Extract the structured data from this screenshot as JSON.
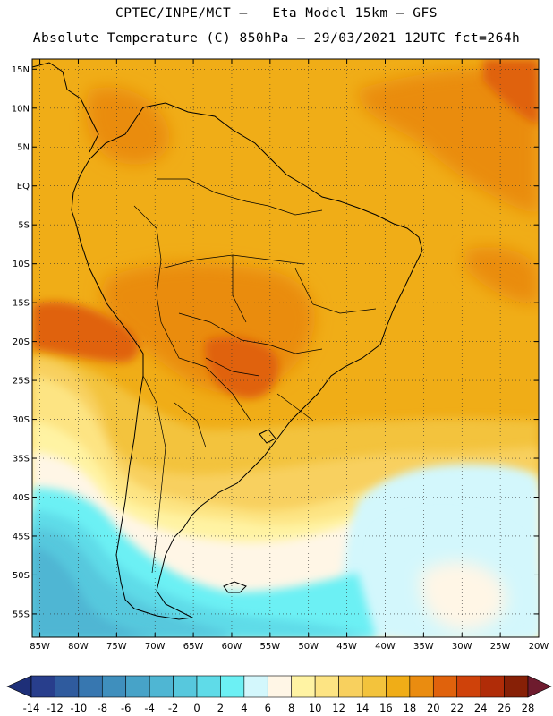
{
  "header": {
    "title_line1": "CPTEC/INPE/MCT –   Eta Model 15km – GFS",
    "title_line2": "Absolute Temperature (C) 850hPa – 29/03/2021 12UTC fct=264h"
  },
  "map": {
    "region": "South America",
    "lat_labels": [
      "15N",
      "10N",
      "5N",
      "EQ",
      "5S",
      "10S",
      "15S",
      "20S",
      "25S",
      "30S",
      "35S",
      "40S",
      "45S",
      "50S",
      "55S"
    ],
    "lon_labels": [
      "85W",
      "80W",
      "75W",
      "70W",
      "65W",
      "60W",
      "55W",
      "50W",
      "45W",
      "40W",
      "35W",
      "30W",
      "25W",
      "20W"
    ],
    "lat_values": [
      15,
      10,
      5,
      0,
      -5,
      -10,
      -15,
      -20,
      -25,
      -30,
      -35,
      -40,
      -45,
      -50,
      -55
    ],
    "lon_values": [
      -85,
      -80,
      -75,
      -70,
      -65,
      -60,
      -55,
      -50,
      -45,
      -40,
      -35,
      -30,
      -25,
      -20
    ],
    "lat_range": [
      -58,
      16.3
    ],
    "lon_range": [
      -86,
      -20
    ]
  },
  "colorbar": {
    "labels": [
      "-14",
      "-12",
      "-10",
      "-8",
      "-6",
      "-4",
      "-2",
      "0",
      "2",
      "4",
      "6",
      "8",
      "10",
      "12",
      "14",
      "16",
      "18",
      "20",
      "22",
      "24",
      "26",
      "28"
    ],
    "colors": [
      "#283e8c",
      "#2f5b9e",
      "#3777b0",
      "#3f8fbd",
      "#47a3c8",
      "#4fb6d3",
      "#57c8dd",
      "#5fdbe8",
      "#6cf0f4",
      "#d3f7fc",
      "#fff6e6",
      "#fff3a3",
      "#fde483",
      "#f8d05e",
      "#f3c33c",
      "#f0ad17",
      "#ea8c10",
      "#e0620c",
      "#cf420a",
      "#b02c08",
      "#872006"
    ],
    "under_color": "#1e2f78",
    "over_color": "#6e1b2e"
  }
}
